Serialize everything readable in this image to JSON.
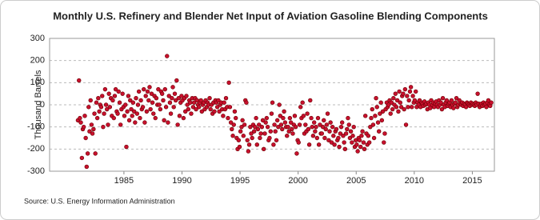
{
  "chart_data": {
    "type": "scatter",
    "title": "Monthly U.S. Refinery and Blender Net Input of Aviation Gasoline Blending Components",
    "y_label": "Thousand Barrels",
    "source": "Source: U.S. Energy Information Administration",
    "color": "#c8102e",
    "grid": true,
    "xlim": [
      1978.6,
      2016.9
    ],
    "xticks": [
      1985,
      1990,
      1995,
      2000,
      2005,
      2010,
      2015
    ],
    "ylim": [
      -300,
      300
    ],
    "yticks": [
      -300,
      -200,
      -100,
      0,
      100,
      200,
      300
    ],
    "x": [
      1981.04,
      1981.13,
      1981.21,
      1981.29,
      1981.38,
      1981.46,
      1981.54,
      1981.63,
      1981.71,
      1981.79,
      1981.88,
      1981.96,
      1982.04,
      1982.13,
      1982.21,
      1982.29,
      1982.38,
      1982.46,
      1982.54,
      1982.63,
      1982.71,
      1982.79,
      1982.88,
      1982.96,
      1983.04,
      1983.13,
      1983.21,
      1983.29,
      1983.38,
      1983.46,
      1983.54,
      1983.63,
      1983.71,
      1983.79,
      1983.88,
      1983.96,
      1984.04,
      1984.13,
      1984.21,
      1984.29,
      1984.38,
      1984.46,
      1984.54,
      1984.63,
      1984.71,
      1984.79,
      1984.88,
      1984.96,
      1985.04,
      1985.13,
      1985.21,
      1985.29,
      1985.38,
      1985.46,
      1985.54,
      1985.63,
      1985.71,
      1985.79,
      1985.88,
      1985.96,
      1986.04,
      1986.13,
      1986.21,
      1986.29,
      1986.38,
      1986.46,
      1986.54,
      1986.63,
      1986.71,
      1986.79,
      1986.88,
      1986.96,
      1987.04,
      1987.13,
      1987.21,
      1987.29,
      1987.38,
      1987.46,
      1987.54,
      1987.63,
      1987.71,
      1987.79,
      1987.88,
      1987.96,
      1988.04,
      1988.13,
      1988.21,
      1988.29,
      1988.38,
      1988.46,
      1988.54,
      1988.63,
      1988.71,
      1988.79,
      1988.88,
      1988.96,
      1989.04,
      1989.13,
      1989.21,
      1989.29,
      1989.38,
      1989.46,
      1989.54,
      1989.63,
      1989.71,
      1989.79,
      1989.88,
      1989.96,
      1990.04,
      1990.13,
      1990.21,
      1990.29,
      1990.38,
      1990.46,
      1990.54,
      1990.63,
      1990.71,
      1990.79,
      1990.88,
      1990.96,
      1991.04,
      1991.13,
      1991.21,
      1991.29,
      1991.38,
      1991.46,
      1991.54,
      1991.63,
      1991.71,
      1991.79,
      1991.88,
      1991.96,
      1992.04,
      1992.13,
      1992.21,
      1992.29,
      1992.38,
      1992.46,
      1992.54,
      1992.63,
      1992.71,
      1992.79,
      1992.88,
      1992.96,
      1993.04,
      1993.13,
      1993.21,
      1993.29,
      1993.38,
      1993.46,
      1993.54,
      1993.63,
      1993.71,
      1993.79,
      1993.88,
      1993.96,
      1994.04,
      1994.13,
      1994.21,
      1994.29,
      1994.38,
      1994.46,
      1994.54,
      1994.63,
      1994.71,
      1994.79,
      1994.88,
      1994.96,
      1995.04,
      1995.13,
      1995.21,
      1995.29,
      1995.38,
      1995.46,
      1995.54,
      1995.63,
      1995.71,
      1995.79,
      1995.88,
      1995.96,
      1996.04,
      1996.13,
      1996.21,
      1996.29,
      1996.38,
      1996.46,
      1996.54,
      1996.63,
      1996.71,
      1996.79,
      1996.88,
      1996.96,
      1997.04,
      1997.13,
      1997.21,
      1997.29,
      1997.38,
      1997.46,
      1997.54,
      1997.63,
      1997.71,
      1997.79,
      1997.88,
      1997.96,
      1998.04,
      1998.13,
      1998.21,
      1998.29,
      1998.38,
      1998.46,
      1998.54,
      1998.63,
      1998.71,
      1998.79,
      1998.88,
      1998.96,
      1999.04,
      1999.13,
      1999.21,
      1999.29,
      1999.38,
      1999.46,
      1999.54,
      1999.63,
      1999.71,
      1999.79,
      1999.88,
      1999.96,
      2000.04,
      2000.13,
      2000.21,
      2000.29,
      2000.38,
      2000.46,
      2000.54,
      2000.63,
      2000.71,
      2000.79,
      2000.88,
      2000.96,
      2001.04,
      2001.13,
      2001.21,
      2001.29,
      2001.38,
      2001.46,
      2001.54,
      2001.63,
      2001.71,
      2001.79,
      2001.88,
      2001.96,
      2002.04,
      2002.13,
      2002.21,
      2002.29,
      2002.38,
      2002.46,
      2002.54,
      2002.63,
      2002.71,
      2002.79,
      2002.88,
      2002.96,
      2003.04,
      2003.13,
      2003.21,
      2003.29,
      2003.38,
      2003.46,
      2003.54,
      2003.63,
      2003.71,
      2003.79,
      2003.88,
      2003.96,
      2004.04,
      2004.13,
      2004.21,
      2004.29,
      2004.38,
      2004.46,
      2004.54,
      2004.63,
      2004.71,
      2004.79,
      2004.88,
      2004.96,
      2005.04,
      2005.13,
      2005.21,
      2005.29,
      2005.38,
      2005.46,
      2005.54,
      2005.63,
      2005.71,
      2005.79,
      2005.88,
      2005.96,
      2006.04,
      2006.13,
      2006.21,
      2006.29,
      2006.38,
      2006.46,
      2006.54,
      2006.63,
      2006.71,
      2006.79,
      2006.88,
      2006.96,
      2007.04,
      2007.13,
      2007.21,
      2007.29,
      2007.38,
      2007.46,
      2007.54,
      2007.63,
      2007.71,
      2007.79,
      2007.88,
      2007.96,
      2008.04,
      2008.13,
      2008.21,
      2008.29,
      2008.38,
      2008.46,
      2008.54,
      2008.63,
      2008.71,
      2008.79,
      2008.88,
      2008.96,
      2009.04,
      2009.13,
      2009.21,
      2009.29,
      2009.38,
      2009.46,
      2009.54,
      2009.63,
      2009.71,
      2009.79,
      2009.88,
      2009.96,
      2010.04,
      2010.13,
      2010.21,
      2010.29,
      2010.38,
      2010.46,
      2010.54,
      2010.63,
      2010.71,
      2010.79,
      2010.88,
      2010.96,
      2011.04,
      2011.13,
      2011.21,
      2011.29,
      2011.38,
      2011.46,
      2011.54,
      2011.63,
      2011.71,
      2011.79,
      2011.88,
      2011.96,
      2012.04,
      2012.13,
      2012.21,
      2012.29,
      2012.38,
      2012.46,
      2012.54,
      2012.63,
      2012.71,
      2012.79,
      2012.88,
      2012.96,
      2013.04,
      2013.13,
      2013.21,
      2013.29,
      2013.38,
      2013.46,
      2013.54,
      2013.63,
      2013.71,
      2013.79,
      2013.88,
      2013.96,
      2014.04,
      2014.13,
      2014.21,
      2014.29,
      2014.38,
      2014.46,
      2014.54,
      2014.63,
      2014.71,
      2014.79,
      2014.88,
      2014.96,
      2015.04,
      2015.13,
      2015.21,
      2015.29,
      2015.38,
      2015.46,
      2015.54,
      2015.63,
      2015.71,
      2015.79,
      2015.88,
      2015.96,
      2016.04,
      2016.13,
      2016.21,
      2016.29,
      2016.38,
      2016.46,
      2016.54,
      2016.63
    ],
    "values": [
      -70,
      110,
      -60,
      -80,
      -240,
      -110,
      -100,
      -50,
      -150,
      -280,
      -220,
      -10,
      -120,
      20,
      -90,
      -130,
      -110,
      -40,
      -220,
      10,
      -60,
      30,
      -30,
      0,
      -10,
      40,
      -100,
      -40,
      70,
      0,
      -20,
      -90,
      50,
      -10,
      30,
      -50,
      20,
      -60,
      40,
      70,
      -30,
      -40,
      60,
      10,
      -90,
      -20,
      50,
      -10,
      -50,
      0,
      -190,
      -30,
      40,
      -70,
      20,
      -20,
      -50,
      10,
      -30,
      -80,
      30,
      -40,
      0,
      60,
      -60,
      20,
      -20,
      -10,
      70,
      -80,
      40,
      -30,
      60,
      20,
      80,
      -20,
      50,
      10,
      -40,
      40,
      -60,
      30,
      0,
      70,
      0,
      -20,
      60,
      50,
      20,
      -70,
      70,
      -10,
      220,
      -80,
      40,
      10,
      -40,
      30,
      80,
      -10,
      50,
      20,
      110,
      -90,
      30,
      -50,
      10,
      40,
      20,
      -60,
      30,
      -30,
      40,
      0,
      -20,
      20,
      10,
      -40,
      30,
      -10,
      10,
      30,
      -20,
      20,
      0,
      -10,
      10,
      20,
      -30,
      0,
      10,
      -20,
      20,
      -10,
      10,
      0,
      30,
      -20,
      0,
      -40,
      10,
      -30,
      20,
      10,
      -10,
      20,
      -30,
      0,
      10,
      -20,
      -50,
      10,
      -20,
      30,
      -10,
      -60,
      100,
      -10,
      -80,
      -110,
      -140,
      -90,
      -30,
      -60,
      -150,
      -200,
      -160,
      -190,
      -120,
      -100,
      -70,
      -140,
      -90,
      20,
      10,
      -160,
      -210,
      -180,
      -100,
      -130,
      -150,
      -90,
      -120,
      -100,
      -60,
      -180,
      -110,
      -90,
      -150,
      -130,
      -100,
      -70,
      -200,
      -130,
      -80,
      -60,
      -100,
      -160,
      -150,
      -120,
      -40,
      10,
      -180,
      -90,
      -120,
      -160,
      -70,
      -100,
      0,
      -50,
      -90,
      -110,
      -60,
      -30,
      -80,
      -100,
      -140,
      -100,
      -120,
      -60,
      -80,
      -110,
      -130,
      -90,
      -50,
      -100,
      -220,
      -160,
      -170,
      -90,
      -10,
      -60,
      10,
      -50,
      -130,
      -90,
      -120,
      -40,
      -110,
      -180,
      20,
      -60,
      -100,
      -140,
      -80,
      -120,
      -100,
      -150,
      -60,
      -180,
      -90,
      -130,
      -130,
      -100,
      -70,
      -150,
      -110,
      -90,
      -40,
      -160,
      -120,
      -80,
      -170,
      -100,
      -140,
      -180,
      -120,
      -110,
      -160,
      -150,
      -190,
      -130,
      -100,
      -80,
      -140,
      -170,
      -200,
      -130,
      -110,
      -60,
      -90,
      -150,
      -120,
      -170,
      -140,
      -100,
      -190,
      -160,
      -180,
      -210,
      -150,
      -160,
      -190,
      -140,
      -120,
      -170,
      -200,
      -50,
      -130,
      -180,
      -140,
      -170,
      -100,
      -60,
      -20,
      -90,
      -150,
      -50,
      30,
      -10,
      -80,
      -120,
      -40,
      10,
      -70,
      -30,
      -170,
      -130,
      -20,
      10,
      -10,
      0,
      20,
      -40,
      10,
      -20,
      30,
      0,
      50,
      -10,
      20,
      -30,
      60,
      10,
      -10,
      40,
      50,
      -20,
      70,
      -90,
      40,
      -10,
      20,
      60,
      80,
      -10,
      40,
      10,
      20,
      60,
      -10,
      10,
      0,
      20,
      -10,
      10,
      5,
      -5,
      15,
      0,
      5,
      -20,
      10,
      0,
      -15,
      20,
      0,
      10,
      -10,
      5,
      15,
      0,
      -10,
      20,
      0,
      10,
      -20,
      30,
      0,
      -10,
      10,
      20,
      -5,
      5,
      10,
      -10,
      20,
      0,
      -15,
      5,
      10,
      30,
      -10,
      0,
      20,
      5,
      0,
      10,
      -5,
      5,
      0,
      -10,
      10,
      5,
      0,
      -5,
      10,
      0,
      5,
      0,
      -5,
      10,
      0,
      50,
      5,
      -10,
      0,
      5,
      -5,
      10,
      0,
      5,
      -10,
      10,
      20,
      0,
      -5,
      10
    ]
  }
}
